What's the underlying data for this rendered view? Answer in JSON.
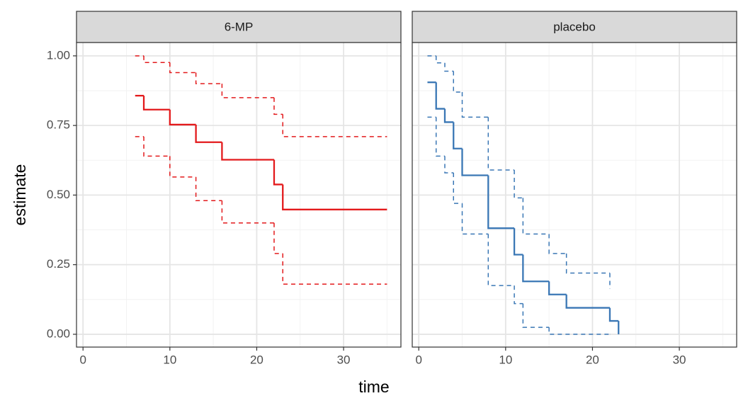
{
  "chart_data": {
    "type": "step",
    "xlabel": "time",
    "ylabel": "estimate",
    "xlim": [
      -0.75,
      36.6
    ],
    "ylim": [
      -0.046,
      1.048
    ],
    "xticks": [
      0,
      10,
      20,
      30
    ],
    "yticks": [
      {
        "value": 0,
        "label": "0.00"
      },
      {
        "value": 0.25,
        "label": "0.25"
      },
      {
        "value": 0.5,
        "label": "0.50"
      },
      {
        "value": 0.75,
        "label": "0.75"
      },
      {
        "value": 1,
        "label": "1.00"
      }
    ],
    "xminor": [
      5,
      15,
      25,
      35
    ],
    "yminor": [
      0.125,
      0.375,
      0.625,
      0.875
    ],
    "grid": true,
    "facets": [
      {
        "label": "6-MP",
        "series": [
          {
            "style": "solid",
            "color": "#e31a1c",
            "x": [
              6,
              7,
              10,
              13,
              16,
              22,
              23,
              35
            ],
            "values": [
              0.857,
              0.807,
              0.753,
              0.69,
              0.627,
              0.538,
              0.448,
              0.448
            ]
          },
          {
            "style": "dashed",
            "color": "#e31a1c",
            "x": [
              6,
              7,
              10,
              13,
              16,
              22,
              23,
              35
            ],
            "values": [
              1.0,
              0.976,
              0.94,
              0.9,
              0.85,
              0.79,
              0.71,
              0.71
            ]
          },
          {
            "style": "dashed",
            "color": "#e31a1c",
            "x": [
              6,
              7,
              10,
              13,
              16,
              22,
              23,
              35
            ],
            "values": [
              0.71,
              0.64,
              0.565,
              0.48,
              0.4,
              0.29,
              0.18,
              0.18
            ]
          }
        ]
      },
      {
        "label": "placebo",
        "series": [
          {
            "style": "solid",
            "color": "#3a77b5",
            "x": [
              1,
              2,
              3,
              4,
              5,
              8,
              11,
              12,
              15,
              17,
              22,
              23
            ],
            "values": [
              0.905,
              0.81,
              0.762,
              0.667,
              0.571,
              0.381,
              0.286,
              0.19,
              0.143,
              0.095,
              0.048,
              0
            ]
          },
          {
            "style": "dashed",
            "color": "#3a77b5",
            "x": [
              1,
              2,
              3,
              4,
              5,
              8,
              11,
              12,
              15,
              17,
              22
            ],
            "values": [
              1.0,
              0.975,
              0.945,
              0.87,
              0.78,
              0.59,
              0.49,
              0.36,
              0.29,
              0.22,
              0.163
            ]
          },
          {
            "style": "dashed",
            "color": "#3a77b5",
            "x": [
              1,
              2,
              3,
              4,
              5,
              8,
              11,
              12,
              15,
              22
            ],
            "values": [
              0.78,
              0.64,
              0.58,
              0.47,
              0.36,
              0.175,
              0.11,
              0.025,
              0,
              0
            ]
          }
        ]
      }
    ]
  }
}
